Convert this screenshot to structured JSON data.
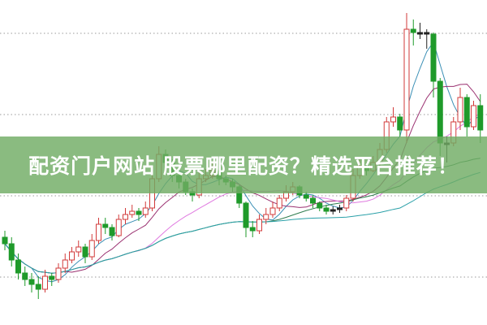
{
  "banner": {
    "title": "配资门户网站 股票哪里配资？精选平台推荐！"
  },
  "chart_data": {
    "type": "candlestick",
    "grid": "horizontal dotted",
    "ylim": [
      0,
      100
    ],
    "colors": {
      "up": "#d23a3a",
      "down": "#1f9a2a",
      "doji": "#222222",
      "grid": "#999999",
      "ma": [
        "#3a8fb5",
        "#9a3070",
        "#e07ae0",
        "#2f7d4f",
        "#2aa0a8"
      ]
    },
    "ma_periods": [
      5,
      10,
      20,
      40,
      60
    ],
    "candles": [
      [
        27,
        29,
        23,
        25
      ],
      [
        25,
        27,
        18,
        20
      ],
      [
        20,
        22,
        14,
        16
      ],
      [
        16,
        18,
        12,
        14
      ],
      [
        14,
        16,
        10,
        12.5
      ],
      [
        12.5,
        15,
        8,
        11
      ],
      [
        11,
        17,
        10,
        15
      ],
      [
        15,
        16,
        12,
        14
      ],
      [
        14,
        19,
        13,
        17.5
      ],
      [
        17.5,
        22,
        16,
        20
      ],
      [
        20,
        24,
        19,
        22.5
      ],
      [
        22.5,
        26,
        21,
        24
      ],
      [
        24,
        25,
        19,
        21
      ],
      [
        21,
        28,
        20,
        26
      ],
      [
        26,
        33,
        25,
        31
      ],
      [
        31,
        33,
        28,
        30
      ],
      [
        30,
        31,
        26,
        27.5
      ],
      [
        27.5,
        34,
        27,
        32.5
      ],
      [
        32.5,
        36,
        31,
        34
      ],
      [
        34,
        37,
        33,
        35
      ],
      [
        35,
        36,
        32,
        34
      ],
      [
        34,
        38,
        33,
        36
      ],
      [
        36,
        47,
        35,
        45
      ],
      [
        45,
        55,
        44,
        52.5
      ],
      [
        52.5,
        54,
        48,
        50
      ],
      [
        50,
        51,
        44,
        46
      ],
      [
        46,
        47,
        42,
        44
      ],
      [
        44,
        45,
        40,
        41
      ],
      [
        41,
        42,
        38,
        40
      ],
      [
        40,
        47,
        39,
        45
      ],
      [
        45,
        48,
        44,
        46
      ],
      [
        46,
        50,
        45,
        47.5
      ],
      [
        47.5,
        48,
        43,
        45
      ],
      [
        45,
        46,
        43,
        44
      ],
      [
        44,
        45,
        41,
        42.5
      ],
      [
        42.5,
        43,
        36,
        37.5
      ],
      [
        37.5,
        38,
        27,
        30
      ],
      [
        30,
        32,
        27,
        29
      ],
      [
        29,
        34,
        28,
        32.5
      ],
      [
        32.5,
        36,
        31,
        34
      ],
      [
        34,
        38,
        33,
        36
      ],
      [
        36,
        40,
        35,
        39
      ],
      [
        39,
        43,
        38,
        41
      ],
      [
        41,
        44,
        40,
        42.5
      ],
      [
        42.5,
        43,
        39,
        40
      ],
      [
        40,
        41,
        38,
        39
      ],
      [
        39,
        40,
        36,
        37.5
      ],
      [
        37.5,
        38,
        35,
        36
      ],
      [
        36,
        37,
        34,
        35
      ],
      [
        35,
        36.5,
        34,
        35.5
      ],
      [
        35.5,
        37,
        34.5,
        36
      ],
      [
        36,
        40,
        35,
        39
      ],
      [
        39,
        48,
        38,
        46
      ],
      [
        46,
        51,
        45,
        49
      ],
      [
        49,
        50,
        46,
        47.5
      ],
      [
        47.5,
        52,
        47,
        50
      ],
      [
        50,
        56,
        49,
        54
      ],
      [
        54,
        64,
        53,
        62.5
      ],
      [
        62.5,
        67,
        61,
        64
      ],
      [
        64,
        65,
        58,
        60
      ],
      [
        60,
        96,
        56,
        91
      ],
      [
        91,
        94,
        86,
        90
      ],
      [
        90,
        93,
        88,
        90
      ],
      [
        90,
        91,
        85,
        89.5
      ],
      [
        89.5,
        90,
        70,
        75
      ],
      [
        75,
        76,
        52,
        56
      ],
      [
        56,
        58,
        50,
        56
      ],
      [
        56,
        64,
        55,
        62.5
      ],
      [
        62.5,
        73,
        60,
        70
      ],
      [
        70,
        71,
        58,
        61
      ],
      [
        61,
        69,
        60,
        67.5
      ],
      [
        67.5,
        71,
        56,
        60
      ]
    ]
  }
}
